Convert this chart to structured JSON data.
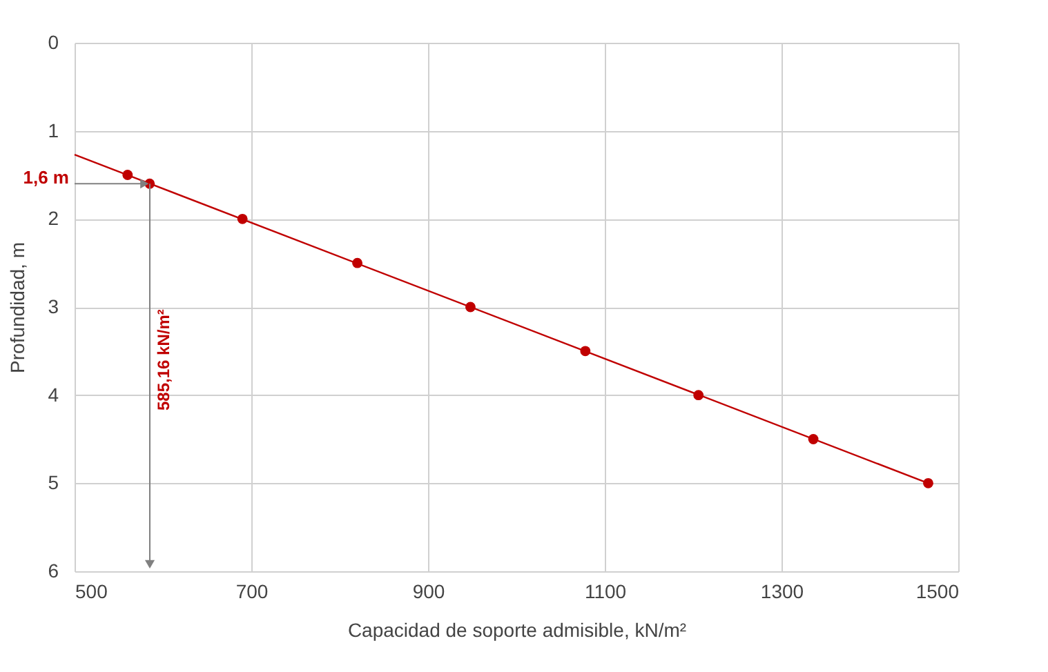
{
  "chart_data": {
    "type": "scatter",
    "xlabel": "Capacidad de soporte admisible, kN/m²",
    "ylabel": "Profundidad, m",
    "series": [
      {
        "color": "#c00000",
        "marker": "circle",
        "x": [
          560,
          585,
          690,
          820,
          948,
          1078,
          1206,
          1336,
          1466
        ],
        "values": [
          1.5,
          1.6,
          2,
          2.5,
          3,
          3.5,
          4,
          4.5,
          5
        ]
      },
      {
        "type": "line",
        "color": "#c00000",
        "marker": "none",
        "x": [
          500,
          1466
        ],
        "values": [
          1.27,
          5
        ]
      }
    ],
    "xlim": [
      500,
      1500
    ],
    "xticks": [
      500,
      700,
      900,
      1100,
      1300,
      1500
    ],
    "ylim": [
      6,
      0
    ],
    "yticks": [
      0,
      1,
      2,
      3,
      4,
      5,
      6
    ],
    "grid": true,
    "annotations": [
      {
        "text": "1,6 m",
        "x": 585.16,
        "y": 1.6
      },
      "585,16 kN/m²"
    ]
  }
}
